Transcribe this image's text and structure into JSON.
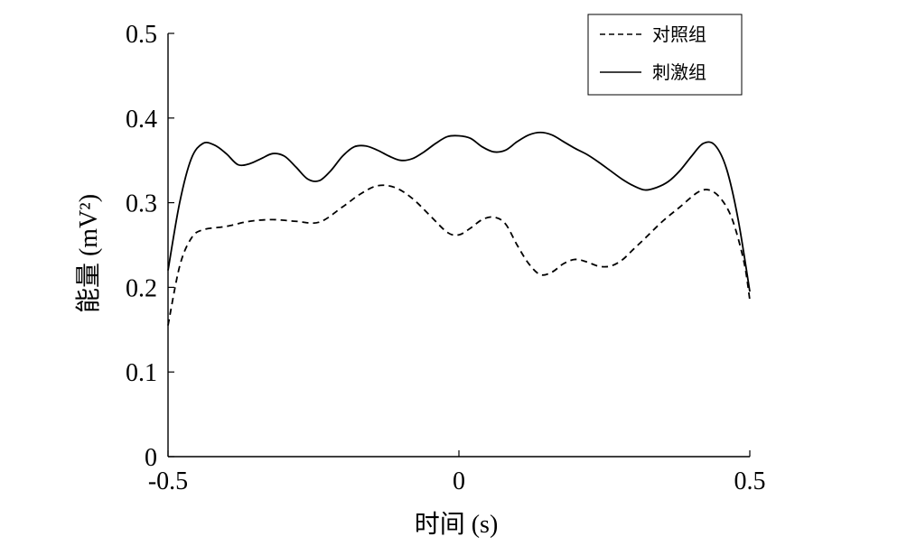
{
  "chart_data": {
    "type": "line",
    "xlabel": "时间 (s)",
    "ylabel": "能量 (mV²)",
    "xlim": [
      -0.5,
      0.5
    ],
    "ylim": [
      0,
      0.5
    ],
    "xticks": [
      -0.5,
      0,
      0.5
    ],
    "xtick_labels": [
      "-0.5",
      "0",
      "0.5"
    ],
    "yticks": [
      0,
      0.1,
      0.2,
      0.3,
      0.4,
      0.5
    ],
    "ytick_labels": [
      "0",
      "0.1",
      "0.2",
      "0.3",
      "0.4",
      "0.5"
    ],
    "grid": false,
    "legend_position": "top-right",
    "series": [
      {
        "name": "对照组",
        "style": "dashed",
        "color": "#000000",
        "x": [
          -0.5,
          -0.48,
          -0.46,
          -0.44,
          -0.4,
          -0.36,
          -0.32,
          -0.28,
          -0.24,
          -0.2,
          -0.17,
          -0.14,
          -0.11,
          -0.08,
          -0.05,
          -0.02,
          0.0,
          0.02,
          0.04,
          0.06,
          0.08,
          0.1,
          0.12,
          0.14,
          0.16,
          0.18,
          0.2,
          0.22,
          0.24,
          0.26,
          0.28,
          0.3,
          0.32,
          0.35,
          0.38,
          0.41,
          0.43,
          0.45,
          0.47,
          0.49,
          0.5
        ],
        "y": [
          0.155,
          0.225,
          0.258,
          0.268,
          0.272,
          0.278,
          0.28,
          0.278,
          0.277,
          0.295,
          0.31,
          0.32,
          0.318,
          0.305,
          0.285,
          0.265,
          0.262,
          0.27,
          0.28,
          0.283,
          0.275,
          0.25,
          0.228,
          0.215,
          0.218,
          0.228,
          0.233,
          0.23,
          0.225,
          0.225,
          0.232,
          0.245,
          0.258,
          0.278,
          0.295,
          0.312,
          0.315,
          0.305,
          0.28,
          0.23,
          0.185
        ]
      },
      {
        "name": "刺激组",
        "style": "solid",
        "color": "#000000",
        "x": [
          -0.5,
          -0.48,
          -0.46,
          -0.44,
          -0.42,
          -0.4,
          -0.38,
          -0.36,
          -0.34,
          -0.32,
          -0.3,
          -0.28,
          -0.26,
          -0.24,
          -0.22,
          -0.2,
          -0.18,
          -0.16,
          -0.14,
          -0.12,
          -0.1,
          -0.08,
          -0.06,
          -0.04,
          -0.02,
          0.0,
          0.02,
          0.04,
          0.06,
          0.08,
          0.1,
          0.12,
          0.14,
          0.16,
          0.18,
          0.2,
          0.22,
          0.24,
          0.26,
          0.28,
          0.3,
          0.32,
          0.34,
          0.36,
          0.38,
          0.4,
          0.42,
          0.44,
          0.46,
          0.48,
          0.5
        ],
        "y": [
          0.22,
          0.3,
          0.352,
          0.37,
          0.368,
          0.358,
          0.345,
          0.346,
          0.352,
          0.358,
          0.355,
          0.342,
          0.328,
          0.326,
          0.338,
          0.355,
          0.366,
          0.367,
          0.362,
          0.355,
          0.35,
          0.352,
          0.36,
          0.37,
          0.378,
          0.379,
          0.376,
          0.366,
          0.36,
          0.362,
          0.372,
          0.38,
          0.383,
          0.38,
          0.372,
          0.364,
          0.357,
          0.348,
          0.338,
          0.328,
          0.32,
          0.315,
          0.318,
          0.325,
          0.338,
          0.355,
          0.37,
          0.368,
          0.34,
          0.28,
          0.195
        ]
      }
    ]
  }
}
